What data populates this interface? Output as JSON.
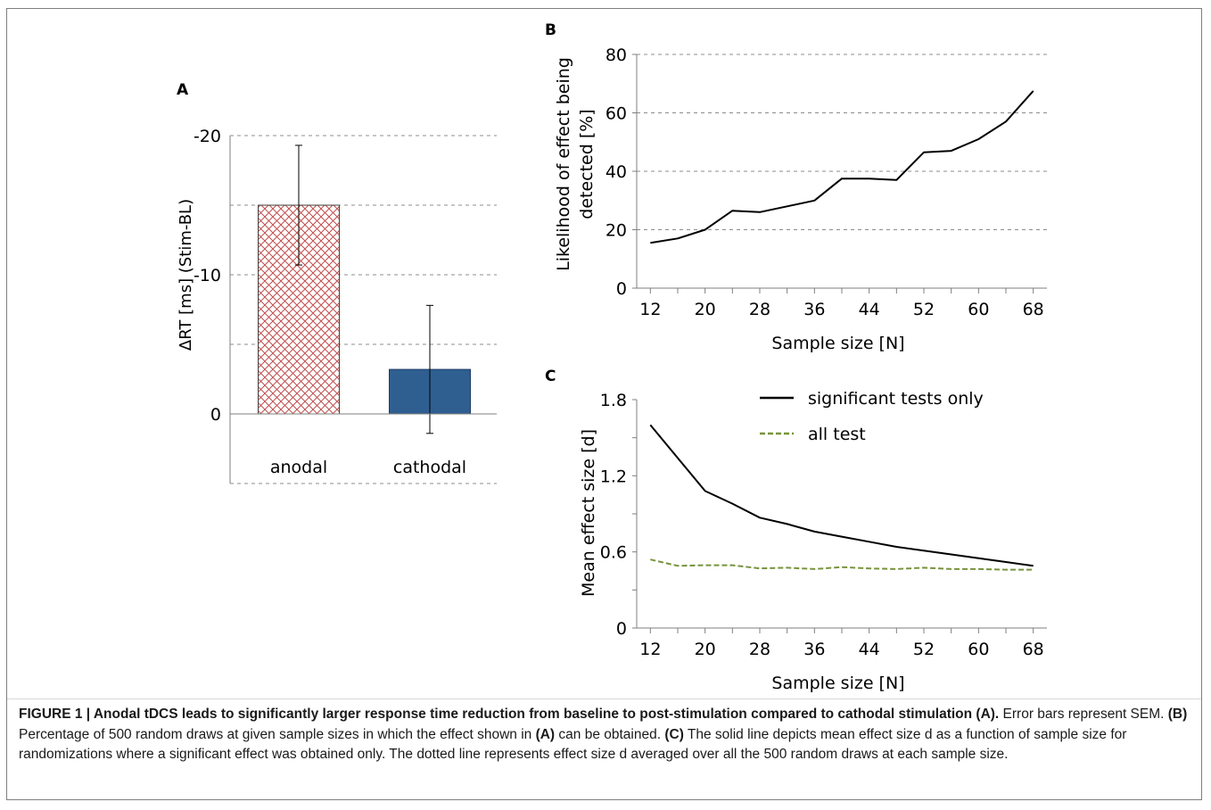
{
  "chart_data": [
    {
      "panel": "A",
      "type": "bar",
      "title": "A",
      "ylabel": "ΔRT [ms] (Stim-BL)",
      "xlabel": "",
      "ylim": [
        -25,
        5
      ],
      "y_inverted": true,
      "yticks": [
        0,
        -10,
        -20
      ],
      "ytick_labels": [
        "0",
        "-10",
        "-20"
      ],
      "grid": true,
      "categories": [
        "anodal",
        "cathodal"
      ],
      "values": [
        -15.0,
        -3.2
      ],
      "errors": [
        4.3,
        4.6
      ],
      "bar_styles": [
        "red-crosshatch",
        "solid-blue"
      ],
      "colors": {
        "anodal": "#c0504d",
        "cathodal": "#2f5f91"
      }
    },
    {
      "panel": "B",
      "type": "line",
      "title": "B",
      "xlabel": "Sample size [N]",
      "ylabel": "Likelihood of effect being detected [%]",
      "xlim": [
        10,
        70
      ],
      "ylim": [
        0,
        80
      ],
      "xticks": [
        12,
        20,
        28,
        36,
        44,
        52,
        60,
        68
      ],
      "yticks": [
        0,
        20,
        40,
        60,
        80
      ],
      "grid": true,
      "series": [
        {
          "color": "#000000",
          "dash": "solid",
          "x": [
            12,
            16,
            20,
            24,
            28,
            32,
            36,
            40,
            44,
            48,
            52,
            56,
            60,
            64,
            68
          ],
          "y": [
            15.5,
            17,
            20,
            26.5,
            26,
            28,
            30,
            37.5,
            37.5,
            37,
            46.5,
            47,
            51,
            57,
            67.5
          ]
        }
      ]
    },
    {
      "panel": "C",
      "type": "line",
      "title": "C",
      "xlabel": "Sample size [N]",
      "ylabel": "Mean effect size [d]",
      "xlim": [
        10,
        70
      ],
      "ylim": [
        0,
        1.8
      ],
      "xticks": [
        12,
        20,
        28,
        36,
        44,
        52,
        60,
        68
      ],
      "yticks": [
        0,
        0.6,
        1.2,
        1.8
      ],
      "ytick_labels": [
        "0",
        "0.6",
        "1.2",
        "1.8"
      ],
      "grid": false,
      "legend_position": "top-right",
      "series": [
        {
          "name": "significant tests only",
          "color": "#000000",
          "dash": "solid",
          "x": [
            12,
            16,
            20,
            24,
            28,
            32,
            36,
            40,
            44,
            48,
            52,
            56,
            60,
            64,
            68
          ],
          "y": [
            1.6,
            1.34,
            1.08,
            0.98,
            0.87,
            0.82,
            0.76,
            0.72,
            0.68,
            0.64,
            0.61,
            0.58,
            0.55,
            0.52,
            0.49
          ]
        },
        {
          "name": "all test",
          "color": "#77933c",
          "dash": "dashed",
          "x": [
            12,
            16,
            20,
            24,
            28,
            32,
            36,
            40,
            44,
            48,
            52,
            56,
            60,
            64,
            68
          ],
          "y": [
            0.54,
            0.49,
            0.495,
            0.495,
            0.47,
            0.475,
            0.465,
            0.48,
            0.47,
            0.465,
            0.475,
            0.465,
            0.465,
            0.46,
            0.46
          ]
        }
      ]
    }
  ],
  "caption": {
    "title": "FIGURE 1 | Anodal tDCS leads to significantly larger response time reduction from baseline to post-stimulation compared to cathodal stimulation (A).",
    "s1": " Error bars represent SEM. ",
    "b_label": "(B)",
    "s2": " Percentage of 500 random draws at given sample sizes in which the effect shown in ",
    "a_ref": "(A)",
    "s3": " can be obtained. ",
    "c_label": "(C)",
    "s4": " The solid line depicts mean effect size d as a function of sample size for randomizations where a significant effect was obtained only. The dotted line represents effect size d averaged over all the 500 random draws at each sample size."
  }
}
